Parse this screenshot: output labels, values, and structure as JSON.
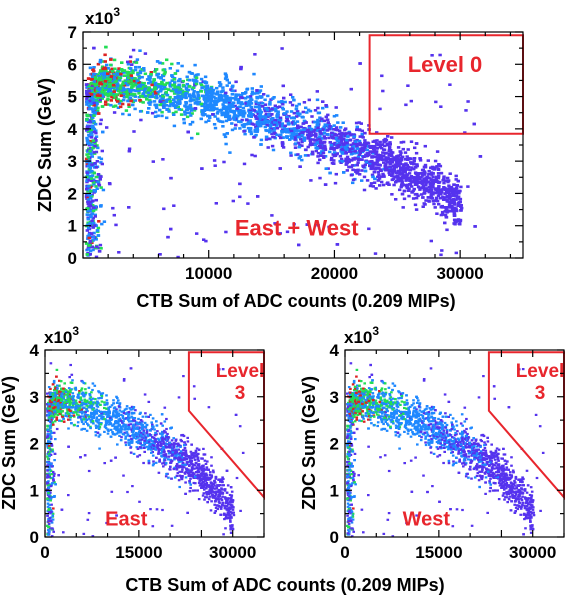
{
  "colors": {
    "accent_red": "#e8262d",
    "density_low": "#5533ee",
    "density_mid": "#1e88ff",
    "density_high": "#22dd55",
    "density_peak": "#dd2222"
  },
  "chart_data": [
    {
      "type": "heatmap",
      "id": "combined",
      "xlabel": "CTB Sum of ADC counts (0.209 MIPs)",
      "ylabel": "ZDC Sum (GeV)",
      "y_multiplier": "x10",
      "y_multiplier_exp": "3",
      "xlim": [
        0,
        35000
      ],
      "ylim": [
        0,
        7
      ],
      "x_ticks": [
        {
          "v": 10000,
          "label": "10000"
        },
        {
          "v": 20000,
          "label": "20000"
        },
        {
          "v": 30000,
          "label": "30000"
        }
      ],
      "y_ticks": [
        {
          "v": 0,
          "label": "0"
        },
        {
          "v": 1,
          "label": "1"
        },
        {
          "v": 2,
          "label": "2"
        },
        {
          "v": 3,
          "label": "3"
        },
        {
          "v": 4,
          "label": "4"
        },
        {
          "v": 5,
          "label": "5"
        },
        {
          "v": 6,
          "label": "6"
        },
        {
          "v": 7,
          "label": "7"
        }
      ],
      "x_minor_step": 2000,
      "y_minor_step": 0.5,
      "band": [
        [
          500,
          5.3
        ],
        [
          2000,
          5.5
        ],
        [
          5000,
          5.3
        ],
        [
          10000,
          4.9
        ],
        [
          15000,
          4.3
        ],
        [
          20000,
          3.6
        ],
        [
          25000,
          2.8
        ],
        [
          28000,
          2.2
        ],
        [
          30000,
          1.6
        ]
      ],
      "band_width": 0.75,
      "trigger_region": {
        "label": "Level 0",
        "polygon": [
          [
            22800,
            6.9
          ],
          [
            35000,
            6.9
          ],
          [
            35000,
            3.85
          ],
          [
            22800,
            3.85
          ]
        ]
      },
      "annotation": "East + West",
      "annotation_pos": [
        17000,
        0.7
      ]
    },
    {
      "type": "heatmap",
      "id": "east",
      "xlabel": "",
      "ylabel": "ZDC Sum (GeV)",
      "y_multiplier": "x10",
      "y_multiplier_exp": "3",
      "xlim": [
        0,
        35000
      ],
      "ylim": [
        0,
        4
      ],
      "x_ticks": [
        {
          "v": 0,
          "label": "0"
        },
        {
          "v": 15000,
          "label": "15000"
        },
        {
          "v": 30000,
          "label": "30000"
        }
      ],
      "y_ticks": [
        {
          "v": 0,
          "label": "0"
        },
        {
          "v": 1,
          "label": "1"
        },
        {
          "v": 2,
          "label": "2"
        },
        {
          "v": 3,
          "label": "3"
        },
        {
          "v": 4,
          "label": "4"
        }
      ],
      "x_minor_step": 5000,
      "y_minor_step": 0.5,
      "band": [
        [
          500,
          2.85
        ],
        [
          2000,
          2.95
        ],
        [
          5000,
          2.85
        ],
        [
          10000,
          2.6
        ],
        [
          15000,
          2.25
        ],
        [
          20000,
          1.85
        ],
        [
          25000,
          1.3
        ],
        [
          28000,
          0.85
        ],
        [
          30000,
          0.5
        ]
      ],
      "band_width": 0.45,
      "trigger_region": {
        "label": "Level 3",
        "polygon": [
          [
            23000,
            3.95
          ],
          [
            35000,
            3.95
          ],
          [
            35000,
            0.85
          ],
          [
            23000,
            2.7
          ]
        ]
      },
      "annotation": "East",
      "annotation_pos": [
        13000,
        0.25
      ]
    },
    {
      "type": "heatmap",
      "id": "west",
      "xlabel": "",
      "ylabel": "ZDC Sum (GeV)",
      "y_multiplier": "x10",
      "y_multiplier_exp": "3",
      "xlim": [
        0,
        35000
      ],
      "ylim": [
        0,
        4
      ],
      "x_ticks": [
        {
          "v": 0,
          "label": "0"
        },
        {
          "v": 15000,
          "label": "15000"
        },
        {
          "v": 30000,
          "label": "30000"
        }
      ],
      "y_ticks": [
        {
          "v": 0,
          "label": "0"
        },
        {
          "v": 1,
          "label": "1"
        },
        {
          "v": 2,
          "label": "2"
        },
        {
          "v": 3,
          "label": "3"
        },
        {
          "v": 4,
          "label": "4"
        }
      ],
      "x_minor_step": 5000,
      "y_minor_step": 0.5,
      "band": [
        [
          500,
          2.85
        ],
        [
          2000,
          2.95
        ],
        [
          5000,
          2.85
        ],
        [
          10000,
          2.6
        ],
        [
          15000,
          2.25
        ],
        [
          20000,
          1.85
        ],
        [
          25000,
          1.3
        ],
        [
          28000,
          0.85
        ],
        [
          30000,
          0.5
        ]
      ],
      "band_width": 0.45,
      "trigger_region": {
        "label": "Level 3",
        "polygon": [
          [
            23000,
            3.95
          ],
          [
            35000,
            3.95
          ],
          [
            35000,
            0.85
          ],
          [
            23000,
            2.7
          ]
        ]
      },
      "annotation": "West",
      "annotation_pos": [
        13000,
        0.25
      ]
    }
  ],
  "shared_xlabel": "CTB Sum of ADC counts (0.209 MIPs)"
}
